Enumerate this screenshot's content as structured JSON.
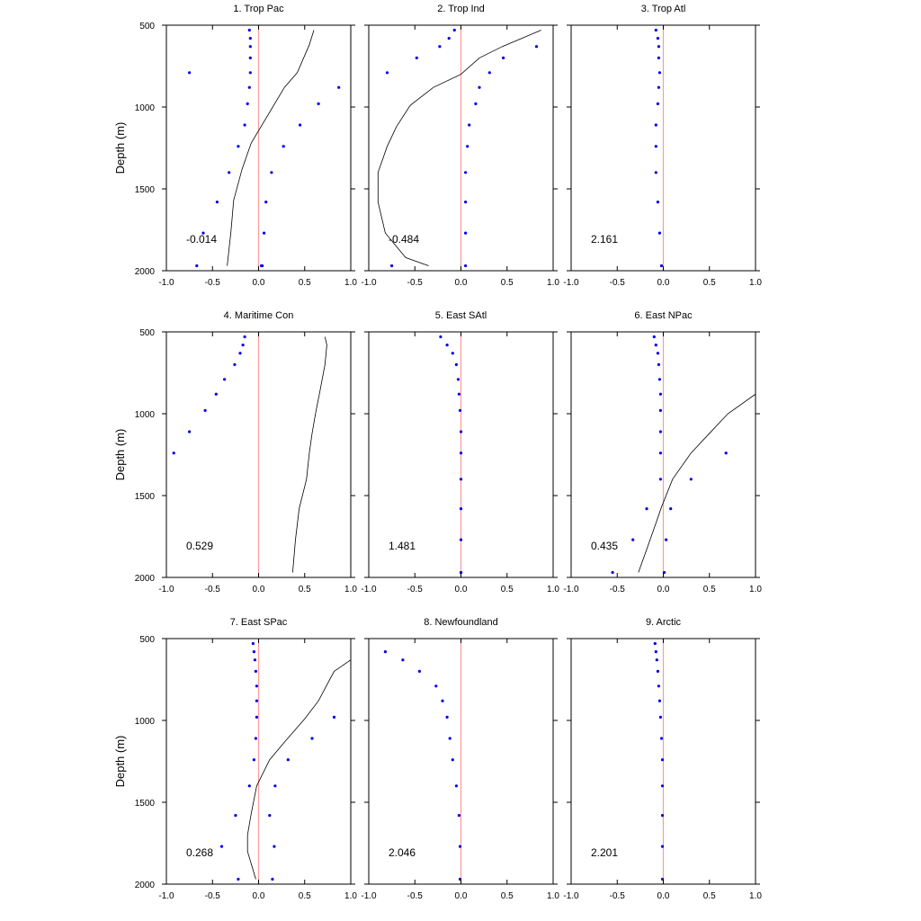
{
  "figure": {
    "ylabel": "Depth (m)"
  },
  "chart_data": [
    {
      "type": "scatter",
      "title": "1. Trop Pac",
      "annotation": "-0.014",
      "xlim": [
        -1.0,
        1.0
      ],
      "ylim": [
        2000,
        500
      ],
      "xticks": [
        -1.0,
        -0.5,
        0.0,
        0.5,
        1.0
      ],
      "yticks": [
        500,
        1000,
        1500,
        2000
      ],
      "line": {
        "x": [
          0.6,
          0.55,
          0.42,
          0.28,
          0.1,
          -0.08,
          -0.18,
          -0.27,
          -0.3,
          -0.34
        ],
        "y": [
          530,
          620,
          790,
          880,
          1050,
          1220,
          1380,
          1570,
          1760,
          1970
        ]
      },
      "points": {
        "x": [
          -0.1,
          -0.09,
          -0.09,
          -0.09,
          -0.09,
          -0.1,
          -0.12,
          -0.15,
          -0.22,
          -0.32,
          -0.45,
          -0.6,
          -0.67,
          -0.75,
          0.87,
          0.65,
          0.45,
          0.27,
          0.14,
          0.08,
          0.06,
          0.04,
          0.03
        ],
        "y": [
          530,
          580,
          630,
          700,
          790,
          880,
          980,
          1110,
          1240,
          1400,
          1580,
          1770,
          1970,
          790,
          880,
          980,
          1110,
          1240,
          1400,
          1580,
          1770,
          1970,
          1970
        ]
      }
    },
    {
      "type": "scatter",
      "title": "2. Trop Ind",
      "annotation": "-0.484",
      "xlim": [
        -1.0,
        1.0
      ],
      "ylim": [
        2000,
        500
      ],
      "xticks": [
        -1.0,
        -0.5,
        0.0,
        0.5,
        1.0
      ],
      "yticks": [
        500,
        1000,
        1500,
        2000
      ],
      "line": {
        "x": [
          0.87,
          0.45,
          0.2,
          0.0,
          -0.3,
          -0.55,
          -0.7,
          -0.8,
          -0.9,
          -0.9,
          -0.82,
          -0.6,
          -0.35
        ],
        "y": [
          530,
          630,
          700,
          800,
          880,
          990,
          1120,
          1240,
          1400,
          1580,
          1770,
          1920,
          1970
        ]
      },
      "points": {
        "x": [
          -0.07,
          -0.13,
          -0.23,
          -0.48,
          -0.8,
          0.82,
          0.46,
          0.31,
          0.2,
          0.16,
          0.09,
          0.07,
          0.05,
          0.05,
          0.05,
          0.05,
          -0.75
        ],
        "y": [
          530,
          580,
          630,
          700,
          790,
          630,
          700,
          790,
          880,
          980,
          1110,
          1240,
          1400,
          1580,
          1770,
          1970,
          1970
        ]
      }
    },
    {
      "type": "scatter",
      "title": "3. Trop Atl",
      "annotation": "2.161",
      "xlim": [
        -1.0,
        1.0
      ],
      "ylim": [
        2000,
        500
      ],
      "xticks": [
        -1.0,
        -0.5,
        0.0,
        0.5,
        1.0
      ],
      "yticks": [
        500,
        1000,
        1500,
        2000
      ],
      "line": null,
      "points": {
        "x": [
          -0.08,
          -0.06,
          -0.05,
          -0.05,
          -0.04,
          -0.05,
          -0.06,
          -0.08,
          -0.08,
          -0.08,
          -0.06,
          -0.04,
          -0.02
        ],
        "y": [
          530,
          580,
          630,
          700,
          790,
          880,
          980,
          1110,
          1240,
          1400,
          1580,
          1770,
          1970
        ]
      }
    },
    {
      "type": "scatter",
      "title": "4. Maritime Con",
      "annotation": "0.529",
      "xlim": [
        -1.0,
        1.0
      ],
      "ylim": [
        2000,
        500
      ],
      "xticks": [
        -1.0,
        -0.5,
        0.0,
        0.5,
        1.0
      ],
      "yticks": [
        500,
        1000,
        1500,
        2000
      ],
      "line": {
        "x": [
          0.72,
          0.74,
          0.72,
          0.66,
          0.62,
          0.58,
          0.55,
          0.52,
          0.44,
          0.4,
          0.37
        ],
        "y": [
          530,
          580,
          700,
          880,
          990,
          1120,
          1240,
          1400,
          1580,
          1770,
          1970
        ]
      },
      "points": {
        "x": [
          -0.15,
          -0.17,
          -0.2,
          -0.26,
          -0.37,
          -0.46,
          -0.58,
          -0.75,
          -0.92
        ],
        "y": [
          530,
          580,
          630,
          700,
          790,
          880,
          980,
          1110,
          1240
        ]
      }
    },
    {
      "type": "scatter",
      "title": "5. East SAtl",
      "annotation": "1.481",
      "xlim": [
        -1.0,
        1.0
      ],
      "ylim": [
        2000,
        500
      ],
      "xticks": [
        -1.0,
        -0.5,
        0.0,
        0.5,
        1.0
      ],
      "yticks": [
        500,
        1000,
        1500,
        2000
      ],
      "line": null,
      "points": {
        "x": [
          -0.22,
          -0.15,
          -0.09,
          -0.05,
          -0.03,
          -0.02,
          -0.01,
          0.0,
          0.0,
          0.0,
          0.0,
          0.0,
          0.0,
          0.0
        ],
        "y": [
          530,
          580,
          630,
          700,
          790,
          880,
          980,
          1110,
          1240,
          1400,
          1580,
          1770,
          1970,
          1970
        ]
      }
    },
    {
      "type": "scatter",
      "title": "6. East NPac",
      "annotation": "0.435",
      "xlim": [
        -1.0,
        1.0
      ],
      "ylim": [
        2000,
        500
      ],
      "xticks": [
        -1.0,
        -0.5,
        0.0,
        0.5,
        1.0
      ],
      "yticks": [
        500,
        1000,
        1500,
        2000
      ],
      "line": {
        "x": [
          1.0,
          0.7,
          0.5,
          0.3,
          0.1,
          -0.02,
          -0.1,
          -0.2,
          -0.27
        ],
        "y": [
          880,
          1000,
          1120,
          1240,
          1400,
          1570,
          1700,
          1860,
          1970
        ]
      },
      "points": {
        "x": [
          -0.1,
          -0.08,
          -0.06,
          -0.05,
          -0.04,
          -0.03,
          -0.03,
          -0.03,
          -0.03,
          -0.03,
          -0.18,
          -0.33,
          -0.55,
          0.68,
          0.3,
          0.08,
          0.03,
          0.01
        ],
        "y": [
          530,
          580,
          630,
          700,
          790,
          880,
          980,
          1110,
          1240,
          1400,
          1580,
          1770,
          1970,
          1240,
          1400,
          1580,
          1770,
          1970
        ]
      }
    },
    {
      "type": "scatter",
      "title": "7. East SPac",
      "annotation": "0.268",
      "xlim": [
        -1.0,
        1.0
      ],
      "ylim": [
        2000,
        500
      ],
      "xticks": [
        -1.0,
        -0.5,
        0.0,
        0.5,
        1.0
      ],
      "yticks": [
        500,
        1000,
        1500,
        2000
      ],
      "line": {
        "x": [
          1.0,
          0.82,
          0.65,
          0.5,
          0.3,
          0.12,
          -0.02,
          -0.08,
          -0.12,
          -0.12,
          -0.03
        ],
        "y": [
          630,
          700,
          880,
          990,
          1120,
          1240,
          1400,
          1570,
          1700,
          1800,
          1970
        ]
      },
      "points": {
        "x": [
          -0.06,
          -0.05,
          -0.04,
          -0.03,
          -0.02,
          -0.02,
          -0.02,
          -0.03,
          -0.05,
          -0.1,
          -0.25,
          -0.4,
          -0.22,
          0.82,
          0.58,
          0.32,
          0.18,
          0.12,
          0.17,
          0.15
        ],
        "y": [
          530,
          580,
          630,
          700,
          790,
          880,
          980,
          1110,
          1240,
          1400,
          1580,
          1770,
          1970,
          980,
          1110,
          1240,
          1400,
          1580,
          1770,
          1970
        ]
      }
    },
    {
      "type": "scatter",
      "title": "8. Newfoundland",
      "annotation": "2.046",
      "xlim": [
        -1.0,
        1.0
      ],
      "ylim": [
        2000,
        500
      ],
      "xticks": [
        -1.0,
        -0.5,
        0.0,
        0.5,
        1.0
      ],
      "yticks": [
        500,
        1000,
        1500,
        2000
      ],
      "line": null,
      "points": {
        "x": [
          -0.82,
          -0.63,
          -0.45,
          -0.27,
          -0.2,
          -0.15,
          -0.12,
          -0.09,
          -0.05,
          -0.02,
          -0.01,
          -0.01
        ],
        "y": [
          580,
          630,
          700,
          790,
          880,
          980,
          1110,
          1240,
          1400,
          1580,
          1770,
          1970
        ]
      }
    },
    {
      "type": "scatter",
      "title": "9. Arctic",
      "annotation": "2.201",
      "xlim": [
        -1.0,
        1.0
      ],
      "ylim": [
        2000,
        500
      ],
      "xticks": [
        -1.0,
        -0.5,
        0.0,
        0.5,
        1.0
      ],
      "yticks": [
        500,
        1000,
        1500,
        2000
      ],
      "line": null,
      "points": {
        "x": [
          -0.09,
          -0.08,
          -0.07,
          -0.06,
          -0.05,
          -0.04,
          -0.03,
          -0.02,
          -0.01,
          -0.01,
          -0.01,
          -0.01,
          -0.01
        ],
        "y": [
          530,
          580,
          630,
          700,
          790,
          880,
          980,
          1110,
          1240,
          1400,
          1580,
          1770,
          1970
        ]
      }
    }
  ]
}
